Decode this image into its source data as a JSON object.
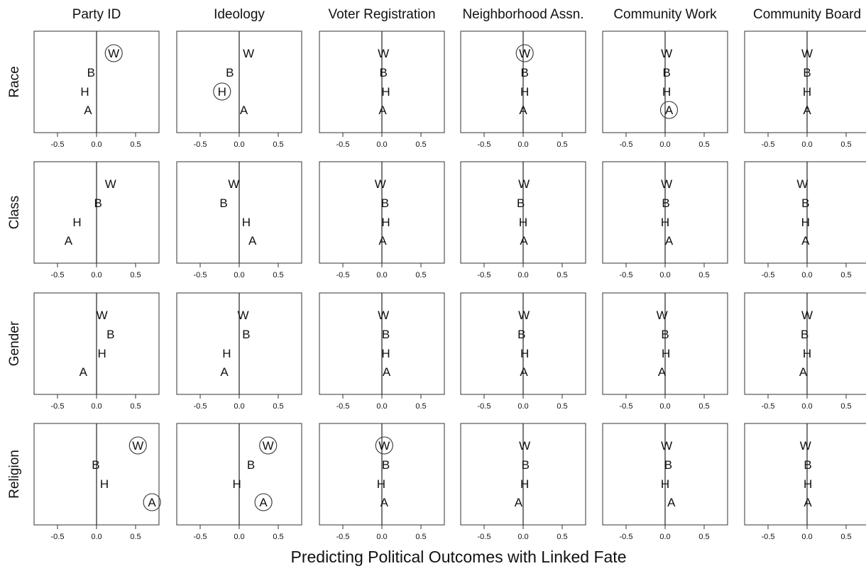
{
  "figure": {
    "xlabel": "Predicting Political Outcomes with Linked Fate"
  },
  "chart_data": {
    "type": "scatter",
    "layout": "small-multiples grid",
    "columns": [
      "Party ID",
      "Ideology",
      "Voter Registration",
      "Neighborhood Assn.",
      "Community Work",
      "Community Board"
    ],
    "rows": [
      "Race",
      "Class",
      "Gender",
      "Religion"
    ],
    "groups": [
      "W",
      "B",
      "H",
      "A"
    ],
    "xlim": [
      -0.8,
      0.8
    ],
    "xticks": [
      -0.5,
      0.0,
      0.5
    ],
    "xtick_labels": [
      "-0.5",
      "0.0",
      "0.5"
    ],
    "xlabel": "Predicting Political Outcomes with Linked Fate",
    "reference_line": 0,
    "circled_means": "circled points",
    "values": [
      [
        {
          "W": 0.22,
          "B": -0.07,
          "H": -0.15,
          "A": -0.11
        },
        {
          "W": 0.12,
          "B": -0.12,
          "H": -0.22,
          "A": 0.06
        },
        {
          "W": 0.02,
          "B": 0.02,
          "H": 0.05,
          "A": 0.01
        },
        {
          "W": 0.02,
          "B": 0.02,
          "H": 0.02,
          "A": 0.0
        },
        {
          "W": 0.02,
          "B": 0.02,
          "H": 0.02,
          "A": 0.05
        },
        {
          "W": 0.0,
          "B": 0.0,
          "H": 0.0,
          "A": 0.0
        }
      ],
      [
        {
          "W": 0.18,
          "B": 0.02,
          "H": -0.25,
          "A": -0.36
        },
        {
          "W": -0.07,
          "B": -0.2,
          "H": 0.09,
          "A": 0.17
        },
        {
          "W": -0.02,
          "B": 0.04,
          "H": 0.05,
          "A": 0.01
        },
        {
          "W": 0.01,
          "B": -0.03,
          "H": 0.0,
          "A": 0.01
        },
        {
          "W": 0.02,
          "B": 0.01,
          "H": 0.0,
          "A": 0.05
        },
        {
          "W": -0.06,
          "B": -0.02,
          "H": -0.02,
          "A": -0.02
        }
      ],
      [
        {
          "W": 0.07,
          "B": 0.18,
          "H": 0.07,
          "A": -0.17
        },
        {
          "W": 0.05,
          "B": 0.09,
          "H": -0.16,
          "A": -0.19
        },
        {
          "W": 0.02,
          "B": 0.05,
          "H": 0.05,
          "A": 0.06
        },
        {
          "W": 0.01,
          "B": -0.02,
          "H": 0.02,
          "A": 0.01
        },
        {
          "W": -0.04,
          "B": 0.0,
          "H": 0.01,
          "A": -0.04
        },
        {
          "W": 0.0,
          "B": -0.03,
          "H": 0.0,
          "A": -0.05
        }
      ],
      [
        {
          "W": 0.53,
          "B": -0.01,
          "H": 0.1,
          "A": 0.71
        },
        {
          "W": 0.37,
          "B": 0.15,
          "H": -0.03,
          "A": 0.31
        },
        {
          "W": 0.03,
          "B": 0.05,
          "H": -0.01,
          "A": 0.03
        },
        {
          "W": 0.02,
          "B": 0.03,
          "H": 0.02,
          "A": -0.06
        },
        {
          "W": 0.02,
          "B": 0.04,
          "H": 0.0,
          "A": 0.08
        },
        {
          "W": -0.02,
          "B": 0.01,
          "H": 0.01,
          "A": 0.01
        }
      ]
    ],
    "circled": [
      [
        [
          "W"
        ],
        [
          "H"
        ],
        [],
        [
          "W"
        ],
        [
          "A"
        ],
        []
      ],
      [
        [],
        [],
        [],
        [],
        [],
        []
      ],
      [
        [],
        [],
        [],
        [],
        [],
        []
      ],
      [
        [
          "W",
          "A"
        ],
        [
          "W",
          "A"
        ],
        [
          "W"
        ],
        [],
        [],
        []
      ]
    ],
    "grid": false,
    "legend": "none"
  }
}
